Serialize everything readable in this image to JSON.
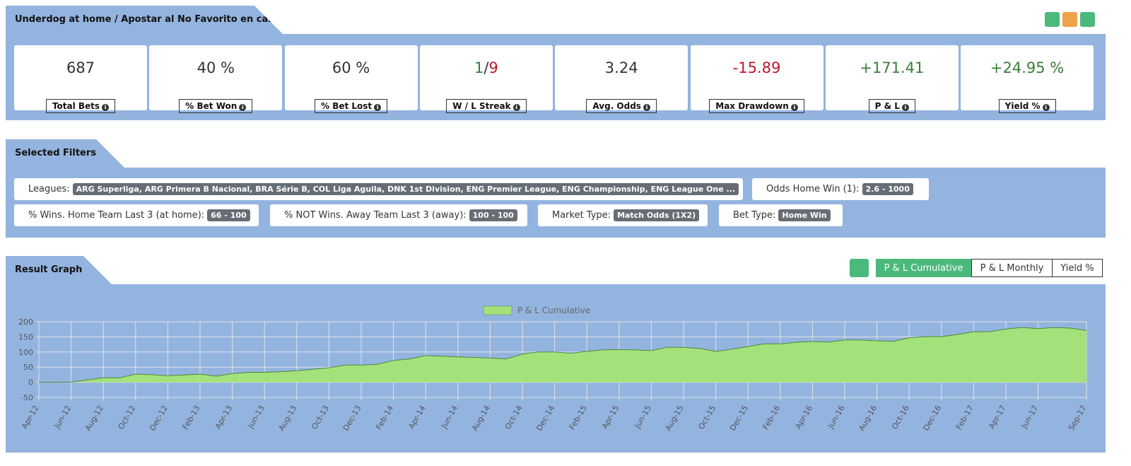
{
  "header": {
    "title": "Underdog at home / Apostar al No Favorito en casa"
  },
  "stats": [
    {
      "value_parts": [
        "687"
      ],
      "colors": [
        "#333333"
      ],
      "label": "Total Bets"
    },
    {
      "value_parts": [
        "40 %"
      ],
      "colors": [
        "#333333"
      ],
      "label": "% Bet Won"
    },
    {
      "value_parts": [
        "60 %"
      ],
      "colors": [
        "#333333"
      ],
      "label": "% Bet Lost"
    },
    {
      "value_parts": [
        "1",
        "/",
        "9"
      ],
      "colors": [
        "#3a7d3a",
        "#333333",
        "#c0162b"
      ],
      "label": "W / L Streak"
    },
    {
      "value_parts": [
        "3.24"
      ],
      "colors": [
        "#333333"
      ],
      "label": "Avg. Odds"
    },
    {
      "value_parts": [
        "-15.89"
      ],
      "colors": [
        "#c0162b"
      ],
      "label": "Max Drawdown"
    },
    {
      "value_parts": [
        "+171.41"
      ],
      "colors": [
        "#3a7d3a"
      ],
      "label": "P & L"
    },
    {
      "value_parts": [
        "+24.95 %"
      ],
      "colors": [
        "#3a7d3a"
      ],
      "label": "Yield %"
    }
  ],
  "filters": {
    "title": "Selected Filters",
    "rows": [
      [
        {
          "label": "Leagues:",
          "value": "ARG Superliga, ARG Primera B Nacional, BRA Série B, COL Liga Aguila, DNK 1st Division, ENG Premier League, ENG Championship, ENG League One ..."
        },
        {
          "label": "Odds Home Win (1):",
          "value": "2.6 - 1000"
        }
      ],
      [
        {
          "label": "% Wins. Home Team Last 3 (at home):",
          "value": "66 - 100"
        },
        {
          "label": "% NOT Wins. Away Team Last 3 (away):",
          "value": "100 - 100"
        },
        {
          "label": "Market Type:",
          "value": "Match Odds (1X2)"
        },
        {
          "label": "Bet Type:",
          "value": "Home Win"
        }
      ]
    ]
  },
  "result_graph": {
    "title": "Result Graph",
    "tabs": [
      "P & L Cumulative",
      "P & L Monthly",
      "Yield %"
    ],
    "active_tab": 0
  },
  "chart_data": {
    "type": "area",
    "categories": [
      "Apr-12",
      null,
      "Jun-12",
      null,
      "Aug-12",
      null,
      "Oct-12",
      null,
      "Dec-12",
      null,
      "Feb-13",
      null,
      "Apr-13",
      null,
      "Jun-13",
      null,
      "Aug-13",
      null,
      "Oct-13",
      null,
      "Dec-13",
      null,
      "Feb-14",
      null,
      "Apr-14",
      null,
      "Jun-14",
      null,
      "Aug-14",
      null,
      "Oct-14",
      null,
      "Dec-14",
      null,
      "Feb-15",
      null,
      "Apr-15",
      null,
      "Jun-15",
      null,
      "Aug-15",
      null,
      "Oct-15",
      null,
      "Dec-15",
      null,
      "Feb-16",
      null,
      "Apr-16",
      null,
      "Jun-16",
      null,
      "Aug-16",
      null,
      "Oct-16",
      null,
      "Dec-16",
      null,
      "Feb-17",
      null,
      "Apr-17",
      null,
      "Jun-17",
      null,
      null,
      "Sep-17"
    ],
    "series": [
      {
        "name": "P & L Cumulative",
        "color": "#a3e27b",
        "line_color": "#4a8a3a",
        "values": [
          0,
          0,
          1,
          8,
          15,
          15,
          27,
          25,
          22,
          24,
          27,
          20,
          29,
          33,
          33,
          35,
          38,
          43,
          48,
          57,
          57,
          59,
          72,
          77,
          88,
          86,
          84,
          82,
          80,
          77,
          93,
          100,
          100,
          96,
          102,
          107,
          108,
          107,
          105,
          116,
          115,
          112,
          102,
          109,
          118,
          127,
          127,
          132,
          135,
          133,
          140,
          140,
          137,
          135,
          147,
          151,
          151,
          158,
          167,
          167,
          176,
          181,
          177,
          181,
          179,
          171
        ]
      }
    ],
    "ylim": [
      -50,
      200
    ],
    "yticks": [
      -50,
      0,
      50,
      100,
      150,
      200
    ],
    "grid": true,
    "legend": "top"
  }
}
